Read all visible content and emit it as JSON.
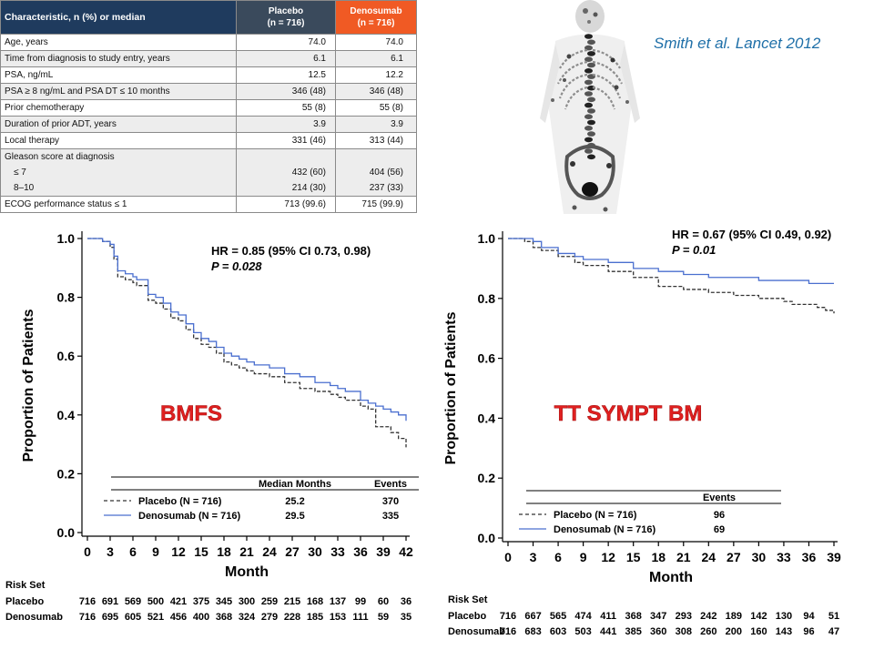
{
  "citation": "Smith et al. Lancet 2012",
  "table": {
    "header": {
      "characteristic": "Characteristic, n (%) or median",
      "placebo_l1": "Placebo",
      "placebo_l2": "(n = 716)",
      "denosumab_l1": "Denosumab",
      "denosumab_l2": "(n = 716)"
    },
    "rows": [
      {
        "label": "Age, years",
        "placebo": "74.0",
        "denosumab": "74.0"
      },
      {
        "label": "Time from diagnosis to study entry, years",
        "placebo": "6.1",
        "denosumab": "6.1"
      },
      {
        "label": "PSA, ng/mL",
        "placebo": "12.5",
        "denosumab": "12.2"
      },
      {
        "label": "PSA ≥ 8 ng/mL and PSA DT ≤ 10 months",
        "placebo": "346 (48)",
        "denosumab": "346 (48)"
      },
      {
        "label": "Prior chemotherapy",
        "placebo": "55 (8)",
        "denosumab": "55 (8)"
      },
      {
        "label": "Duration of prior ADT,  years",
        "placebo": "3.9",
        "denosumab": "3.9"
      },
      {
        "label": "Local therapy",
        "placebo": "331 (46)",
        "denosumab": "313 (44)"
      }
    ],
    "gleason": {
      "label": "Gleason score at diagnosis",
      "sub": [
        {
          "label": "≤ 7",
          "placebo": "432 (60)",
          "denosumab": "404 (56)"
        },
        {
          "label": "8–10",
          "placebo": "214 (30)",
          "denosumab": "237 (33)"
        }
      ]
    },
    "ecog": {
      "label": "ECOG performance status ≤ 1",
      "placebo": "713 (99.6)",
      "denosumab": "715 (99.9)"
    }
  },
  "chart_data": [
    {
      "type": "line",
      "overlay_label": "BMFS",
      "ylabel": "Proportion of Patients",
      "xlabel": "Month",
      "xlim": [
        0,
        42
      ],
      "ylim": [
        0,
        1.0
      ],
      "xticks": [
        0,
        3,
        6,
        9,
        12,
        15,
        18,
        21,
        24,
        27,
        30,
        33,
        36,
        39,
        42
      ],
      "yticks": [
        "0.0",
        "0.2",
        "0.4",
        "0.6",
        "0.8",
        "1.0"
      ],
      "stats": {
        "hr": "HR = 0.85 (95% CI 0.73, 0.98)",
        "p": "P = 0.028"
      },
      "legend": {
        "headers": [
          "Median Months",
          "Events"
        ],
        "rows": [
          {
            "name": "Placebo (N = 716)",
            "median": "25.2",
            "events": "370"
          },
          {
            "name": "Denosumab (N = 716)",
            "median": "29.5",
            "events": "335"
          }
        ]
      },
      "series": [
        {
          "name": "Placebo (N = 716)",
          "color": "#333333",
          "dashed": true,
          "x": [
            0,
            2,
            3,
            3.5,
            4,
            5,
            6,
            6.5,
            8,
            9,
            10,
            11,
            12,
            13,
            14,
            15,
            16,
            17,
            18,
            19,
            20,
            21,
            22,
            24,
            26,
            28,
            30,
            32,
            33,
            34,
            36,
            37,
            38,
            39,
            40,
            41,
            42
          ],
          "y": [
            1.0,
            0.99,
            0.97,
            0.93,
            0.87,
            0.86,
            0.85,
            0.84,
            0.79,
            0.78,
            0.76,
            0.73,
            0.72,
            0.69,
            0.66,
            0.64,
            0.63,
            0.61,
            0.58,
            0.57,
            0.56,
            0.55,
            0.54,
            0.53,
            0.51,
            0.49,
            0.48,
            0.47,
            0.46,
            0.45,
            0.43,
            0.42,
            0.36,
            0.36,
            0.34,
            0.32,
            0.29
          ]
        },
        {
          "name": "Denosumab (N = 716)",
          "color": "#4a6fcf",
          "dashed": false,
          "x": [
            0,
            2,
            3,
            3.5,
            4,
            5,
            6,
            6.5,
            8,
            9,
            10,
            11,
            12,
            13,
            14,
            15,
            16,
            17,
            18,
            19,
            20,
            21,
            22,
            24,
            26,
            28,
            30,
            32,
            33,
            34,
            36,
            37,
            38,
            39,
            40,
            41,
            42
          ],
          "y": [
            1.0,
            0.99,
            0.98,
            0.94,
            0.89,
            0.88,
            0.87,
            0.86,
            0.81,
            0.8,
            0.78,
            0.75,
            0.74,
            0.71,
            0.68,
            0.66,
            0.65,
            0.63,
            0.61,
            0.6,
            0.59,
            0.58,
            0.57,
            0.56,
            0.54,
            0.53,
            0.51,
            0.5,
            0.49,
            0.48,
            0.45,
            0.44,
            0.43,
            0.42,
            0.41,
            0.4,
            0.38
          ]
        }
      ],
      "risk_set": {
        "title": "Risk Set",
        "rows": [
          {
            "name": "Placebo",
            "values": [
              "716",
              "691",
              "569",
              "500",
              "421",
              "375",
              "345",
              "300",
              "259",
              "215",
              "168",
              "137",
              "99",
              "60",
              "36"
            ]
          },
          {
            "name": "Denosumab",
            "values": [
              "716",
              "695",
              "605",
              "521",
              "456",
              "400",
              "368",
              "324",
              "279",
              "228",
              "185",
              "153",
              "111",
              "59",
              "35"
            ]
          }
        ]
      }
    },
    {
      "type": "line",
      "overlay_label": "TT SYMPT  BM",
      "ylabel": "Proportion of Patients",
      "xlabel": "Month",
      "xlim": [
        0,
        39
      ],
      "ylim": [
        0,
        1.0
      ],
      "xticks": [
        0,
        3,
        6,
        9,
        12,
        15,
        18,
        21,
        24,
        27,
        30,
        33,
        36,
        39
      ],
      "yticks": [
        "0.0",
        "0.2",
        "0.4",
        "0.6",
        "0.8",
        "1.0"
      ],
      "stats": {
        "hr": "HR = 0.67 (95% CI 0.49, 0.92)",
        "p": "P = 0.01"
      },
      "legend": {
        "headers": [
          "Events"
        ],
        "rows": [
          {
            "name": "Placebo (N = 716)",
            "events": "96"
          },
          {
            "name": "Denosumab (N = 716)",
            "events": "69"
          }
        ]
      },
      "series": [
        {
          "name": "Placebo (N = 716)",
          "color": "#333333",
          "dashed": true,
          "x": [
            0,
            2,
            3,
            4,
            6,
            8,
            9,
            12,
            15,
            18,
            21,
            24,
            27,
            30,
            33,
            34,
            36,
            37,
            38,
            39
          ],
          "y": [
            1.0,
            0.99,
            0.97,
            0.96,
            0.94,
            0.92,
            0.91,
            0.89,
            0.87,
            0.84,
            0.83,
            0.82,
            0.81,
            0.8,
            0.79,
            0.78,
            0.78,
            0.77,
            0.76,
            0.75
          ]
        },
        {
          "name": "Denosumab (N = 716)",
          "color": "#4a6fcf",
          "dashed": false,
          "x": [
            0,
            2,
            3,
            4,
            6,
            8,
            9,
            12,
            15,
            18,
            21,
            24,
            27,
            30,
            33,
            36,
            39
          ],
          "y": [
            1.0,
            1.0,
            0.99,
            0.97,
            0.95,
            0.94,
            0.93,
            0.92,
            0.9,
            0.89,
            0.88,
            0.87,
            0.87,
            0.86,
            0.86,
            0.85,
            0.85
          ]
        }
      ],
      "risk_set": {
        "title": "Risk Set",
        "rows": [
          {
            "name": "Placebo",
            "values": [
              "716",
              "667",
              "565",
              "474",
              "411",
              "368",
              "347",
              "293",
              "242",
              "189",
              "142",
              "130",
              "94",
              "51"
            ]
          },
          {
            "name": "Denosumab",
            "values": [
              "716",
              "683",
              "603",
              "503",
              "441",
              "385",
              "360",
              "308",
              "260",
              "200",
              "160",
              "143",
              "96",
              "47"
            ]
          }
        ]
      }
    }
  ]
}
